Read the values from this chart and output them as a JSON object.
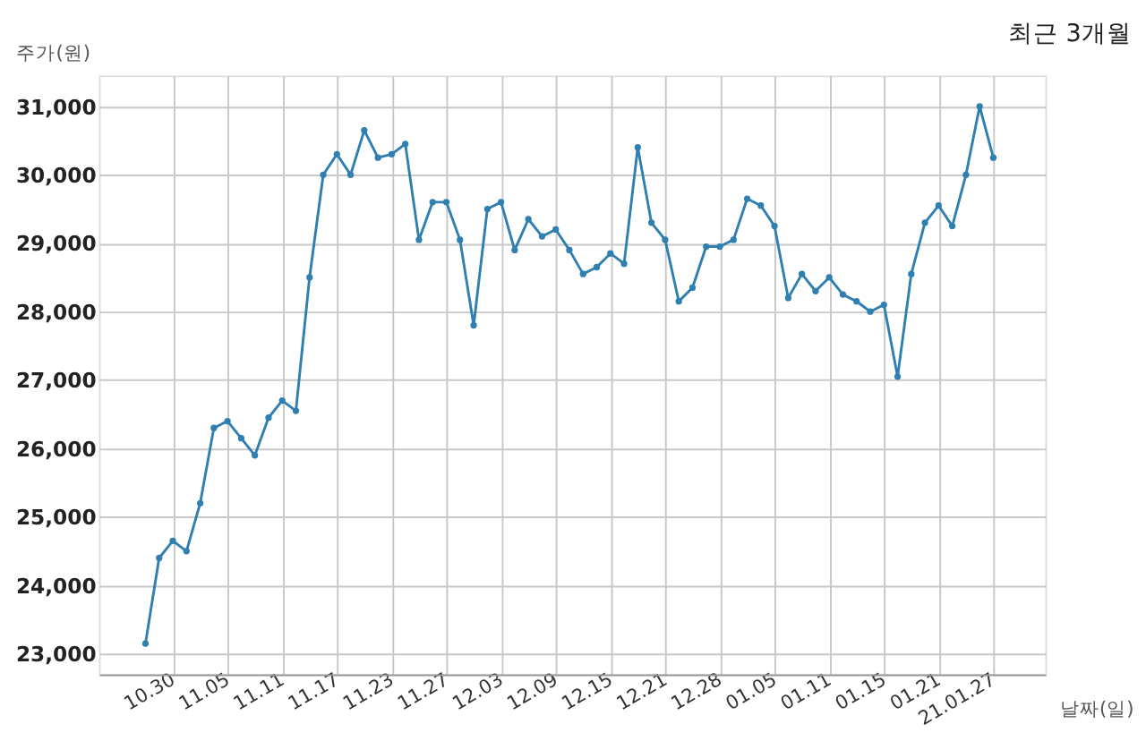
{
  "chart_data": {
    "type": "line",
    "title": "최근 3개월",
    "xlabel": "날짜(일)",
    "ylabel": "주가(원)",
    "categories": [
      null,
      null,
      "10.30",
      null,
      null,
      null,
      "11.05",
      null,
      null,
      null,
      "11.11",
      null,
      null,
      null,
      "11.17",
      null,
      null,
      null,
      "11.23",
      null,
      null,
      null,
      "11.27",
      null,
      null,
      null,
      "12.03",
      null,
      null,
      null,
      "12.09",
      null,
      null,
      null,
      "12.15",
      null,
      null,
      null,
      "12.21",
      null,
      null,
      null,
      "12.28",
      null,
      null,
      null,
      "01.05",
      null,
      null,
      null,
      "01.11",
      null,
      null,
      null,
      "01.15",
      null,
      null,
      null,
      "01.21",
      null,
      null,
      null,
      "21.01.27"
    ],
    "series": [
      {
        "color": "#2f7fb0",
        "values": [
          23150,
          24400,
          24650,
          24500,
          25200,
          26300,
          26400,
          26150,
          25900,
          26450,
          26700,
          26550,
          28500,
          30000,
          30300,
          30000,
          30650,
          30250,
          30300,
          30450,
          29050,
          29600,
          29600,
          29050,
          27800,
          29500,
          29600,
          28900,
          29350,
          29100,
          29200,
          28900,
          28550,
          28650,
          28850,
          28700,
          30400,
          29300,
          29050,
          28150,
          28350,
          28950,
          28950,
          29050,
          29650,
          29550,
          29250,
          28200,
          28550,
          28300,
          28500,
          28250,
          28150,
          28000,
          28100,
          27050,
          28550,
          29300,
          29550,
          29250,
          30000,
          31000,
          30250
        ]
      }
    ],
    "ylim": [
      22700,
      31450
    ],
    "yticks": [
      {
        "value": 23000,
        "label": "23,000"
      },
      {
        "value": 24000,
        "label": "24,000"
      },
      {
        "value": 25000,
        "label": "25,000"
      },
      {
        "value": 26000,
        "label": "26,000"
      },
      {
        "value": 27000,
        "label": "27,000"
      },
      {
        "value": 28000,
        "label": "28,000"
      },
      {
        "value": 29000,
        "label": "29,000"
      },
      {
        "value": 30000,
        "label": "30,000"
      },
      {
        "value": 31000,
        "label": "31,000"
      }
    ],
    "grid": true,
    "marker": "circle",
    "line_style": "solid"
  }
}
